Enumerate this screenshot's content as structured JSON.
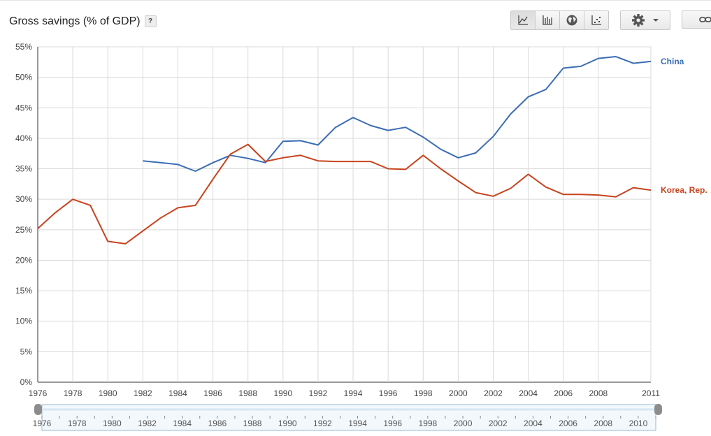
{
  "header": {
    "title": "Gross savings (% of GDP)",
    "help_label": "?"
  },
  "toolbar": {
    "chart_types": [
      {
        "icon": "line-chart-icon",
        "active": true
      },
      {
        "icon": "bar-chart-icon",
        "active": false
      },
      {
        "icon": "globe-icon",
        "active": false
      },
      {
        "icon": "scatter-chart-icon",
        "active": false
      }
    ],
    "settings_icon": "gear-icon",
    "dropdown_icon": "caret-down-icon",
    "link_icon": "link-icon"
  },
  "colors": {
    "china": "#3b6db4",
    "korea": "#c6441e",
    "grid": "#d9d9d9",
    "axis": "#333333"
  },
  "range_selector": {
    "ticks": [
      "1976",
      "1978",
      "1980",
      "1982",
      "1984",
      "1986",
      "1988",
      "1990",
      "1992",
      "1994",
      "1996",
      "1998",
      "2000",
      "2002",
      "2004",
      "2006",
      "2008",
      "2010"
    ]
  },
  "chart_data": {
    "type": "line",
    "xlim": [
      1976,
      2011
    ],
    "ylim": [
      0,
      55
    ],
    "x_ticks": [
      "1976",
      "1978",
      "1980",
      "1982",
      "1984",
      "1986",
      "1988",
      "1990",
      "1992",
      "1994",
      "1996",
      "1998",
      "2000",
      "2002",
      "2004",
      "2006",
      "2008",
      "2011"
    ],
    "y_ticks": [
      "0%",
      "5%",
      "10%",
      "15%",
      "20%",
      "25%",
      "30%",
      "35%",
      "40%",
      "45%",
      "50%",
      "55%"
    ],
    "grid": true,
    "legend": "end-of-line labels, right",
    "series": [
      {
        "name": "China",
        "color": "#3b6db4",
        "x": [
          1982,
          1983,
          1984,
          1985,
          1986,
          1987,
          1988,
          1989,
          1990,
          1991,
          1992,
          1993,
          1994,
          1995,
          1996,
          1997,
          1998,
          1999,
          2000,
          2001,
          2002,
          2003,
          2004,
          2005,
          2006,
          2007,
          2008,
          2009,
          2010,
          2011
        ],
        "y": [
          36.3,
          36.0,
          35.7,
          34.6,
          36.0,
          37.2,
          36.7,
          36.0,
          39.5,
          39.6,
          38.9,
          41.8,
          43.4,
          42.1,
          41.3,
          41.8,
          40.2,
          38.2,
          36.8,
          37.6,
          40.3,
          44.0,
          46.8,
          48.0,
          51.5,
          51.8,
          53.1,
          53.4,
          52.3,
          52.6
        ]
      },
      {
        "name": "Korea, Rep.",
        "color": "#c6441e",
        "x": [
          1976,
          1977,
          1978,
          1979,
          1980,
          1981,
          1982,
          1983,
          1984,
          1985,
          1986,
          1987,
          1988,
          1989,
          1990,
          1991,
          1992,
          1993,
          1994,
          1995,
          1996,
          1997,
          1998,
          1999,
          2000,
          2001,
          2002,
          2003,
          2004,
          2005,
          2006,
          2007,
          2008,
          2009,
          2010,
          2011
        ],
        "y": [
          25.2,
          27.8,
          30.0,
          29.0,
          23.1,
          22.7,
          24.8,
          26.9,
          28.6,
          29.0,
          33.3,
          37.4,
          39.0,
          36.2,
          36.8,
          37.2,
          36.3,
          36.2,
          36.2,
          36.2,
          35.0,
          34.9,
          37.2,
          35.0,
          33.0,
          31.1,
          30.5,
          31.8,
          34.1,
          32.0,
          30.8,
          30.8,
          30.7,
          30.4,
          31.9,
          31.5
        ]
      }
    ]
  }
}
